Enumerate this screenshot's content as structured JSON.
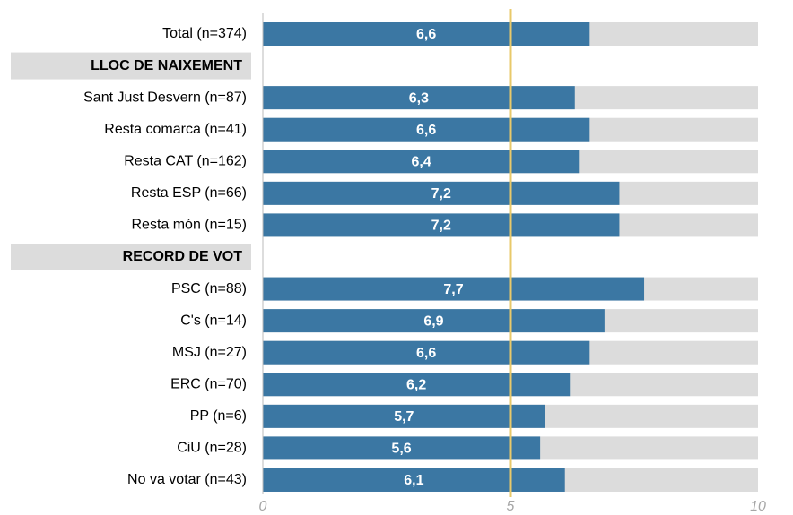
{
  "chart_data": {
    "type": "bar",
    "orientation": "horizontal",
    "categories": [
      "Total (n=374)",
      "LLOC DE NAIXEMENT",
      "Sant Just Desvern (n=87)",
      "Resta comarca (n=41)",
      "Resta CAT (n=162)",
      "Resta ESP (n=66)",
      "Resta món (n=15)",
      "RECORD DE VOT",
      "PSC (n=88)",
      "C's (n=14)",
      "MSJ (n=27)",
      "ERC (n=70)",
      "PP (n=6)",
      "CiU (n=28)",
      "No va votar (n=43)"
    ],
    "values": [
      6.6,
      null,
      6.3,
      6.6,
      6.4,
      7.2,
      7.2,
      null,
      7.7,
      6.9,
      6.6,
      6.2,
      5.7,
      5.6,
      6.1
    ],
    "value_labels": [
      "6,6",
      null,
      "6,3",
      "6,6",
      "6,4",
      "7,2",
      "7,2",
      null,
      "7,7",
      "6,9",
      "6,6",
      "6,2",
      "5,7",
      "5,6",
      "6,1"
    ],
    "color": "#3b77a3",
    "background_color": "#dcdcdc",
    "xlim": [
      0,
      10
    ],
    "xticks": [
      0,
      5,
      10
    ],
    "reference_line": 5,
    "reference_color": "#e8c96a"
  }
}
